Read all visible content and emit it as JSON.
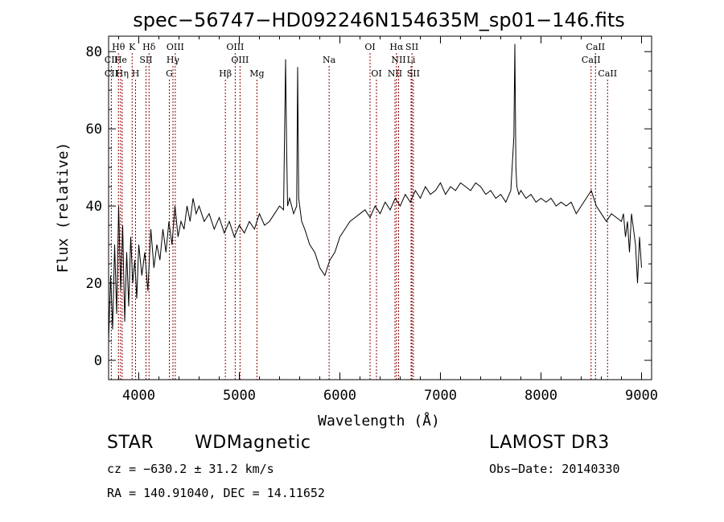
{
  "chart_data": {
    "type": "line",
    "title": "spec−56747−HD092246N154635M_sp01−146.fits",
    "xlabel": "Wavelength (Å)",
    "ylabel": "Flux (relative)",
    "xlim": [
      3700,
      9100
    ],
    "ylim": [
      -5,
      84
    ],
    "xticks": [
      4000,
      5000,
      6000,
      7000,
      8000,
      9000
    ],
    "yticks": [
      0,
      20,
      40,
      60,
      80
    ],
    "line_color": "#8b0000",
    "series": [
      {
        "values_x": [
          3700,
          3720,
          3740,
          3760,
          3780,
          3800,
          3820,
          3840,
          3860,
          3880,
          3900,
          3920,
          3940,
          3960,
          3980,
          4000,
          4030,
          4060,
          4090,
          4120,
          4150,
          4180,
          4210,
          4240,
          4270,
          4300,
          4330,
          4360,
          4390,
          4420,
          4450,
          4480,
          4510,
          4540,
          4570,
          4600,
          4650,
          4700,
          4750,
          4800,
          4850,
          4900,
          4950,
          5000,
          5050,
          5100,
          5150,
          5200,
          5250,
          5300,
          5350,
          5400,
          5440,
          5460,
          5470,
          5480,
          5500,
          5540,
          5570,
          5580,
          5590,
          5620,
          5650,
          5700,
          5750,
          5800,
          5850,
          5900,
          5950,
          6000,
          6050,
          6100,
          6150,
          6200,
          6250,
          6300,
          6350,
          6400,
          6450,
          6500,
          6550,
          6600,
          6650,
          6700,
          6750,
          6800,
          6850,
          6900,
          6950,
          7000,
          7050,
          7100,
          7150,
          7200,
          7250,
          7300,
          7350,
          7400,
          7450,
          7500,
          7550,
          7600,
          7650,
          7700,
          7730,
          7740,
          7750,
          7760,
          7780,
          7800,
          7850,
          7900,
          7950,
          8000,
          8050,
          8100,
          8150,
          8200,
          8250,
          8300,
          8350,
          8400,
          8450,
          8500,
          8550,
          8600,
          8650,
          8700,
          8750,
          8800,
          8820,
          8840,
          8860,
          8880,
          8900,
          8920,
          8940,
          8960,
          8980,
          9000
        ],
        "values_y": [
          5,
          22,
          8,
          30,
          12,
          40,
          18,
          35,
          10,
          28,
          14,
          32,
          20,
          26,
          16,
          30,
          22,
          28,
          18,
          34,
          24,
          30,
          26,
          34,
          28,
          36,
          30,
          40,
          32,
          36,
          34,
          40,
          36,
          42,
          38,
          40,
          36,
          38,
          34,
          37,
          33,
          36,
          32,
          35,
          33,
          36,
          34,
          38,
          35,
          36,
          38,
          40,
          39,
          78,
          55,
          40,
          42,
          38,
          40,
          76,
          42,
          36,
          34,
          30,
          28,
          24,
          22,
          26,
          28,
          32,
          34,
          36,
          37,
          38,
          39,
          37,
          40,
          38,
          41,
          39,
          42,
          40,
          43,
          41,
          44,
          42,
          45,
          43,
          44,
          46,
          43,
          45,
          44,
          46,
          45,
          44,
          46,
          45,
          43,
          44,
          42,
          43,
          41,
          44,
          58,
          82,
          50,
          45,
          43,
          44,
          42,
          43,
          41,
          42,
          41,
          42,
          40,
          41,
          40,
          41,
          38,
          40,
          42,
          44,
          40,
          38,
          36,
          38,
          37,
          36,
          38,
          32,
          36,
          28,
          38,
          34,
          30,
          20,
          32,
          24
        ]
      }
    ],
    "line_labels": [
      {
        "text": "Hθ",
        "row": 1,
        "x": 3798
      },
      {
        "text": "K",
        "row": 1,
        "x": 3934
      },
      {
        "text": "Hδ",
        "row": 1,
        "x": 4102
      },
      {
        "text": "OIII",
        "row": 1,
        "x": 4363
      },
      {
        "text": "OIII",
        "row": 1,
        "x": 4959
      },
      {
        "text": "OI",
        "row": 1,
        "x": 6300
      },
      {
        "text": "Hα",
        "row": 1,
        "x": 6563
      },
      {
        "text": "SII",
        "row": 1,
        "x": 6717
      },
      {
        "text": "CaII",
        "row": 1,
        "x": 8542
      },
      {
        "text": "CII",
        "row": 2,
        "x": 3727
      },
      {
        "text": "He",
        "row": 2,
        "x": 3819
      },
      {
        "text": "SII",
        "row": 2,
        "x": 4072
      },
      {
        "text": "Hγ",
        "row": 2,
        "x": 4340
      },
      {
        "text": "OIII",
        "row": 2,
        "x": 5007
      },
      {
        "text": "Na",
        "row": 2,
        "x": 5893
      },
      {
        "text": "NII",
        "row": 2,
        "x": 6584
      },
      {
        "text": "Li",
        "row": 2,
        "x": 6708
      },
      {
        "text": "CaII",
        "row": 2,
        "x": 8498
      },
      {
        "text": "CII",
        "row": 3,
        "x": 3727
      },
      {
        "text": "Hη",
        "row": 3,
        "x": 3835
      },
      {
        "text": "H",
        "row": 3,
        "x": 3968
      },
      {
        "text": "G",
        "row": 3,
        "x": 4304
      },
      {
        "text": "Hβ",
        "row": 3,
        "x": 4861
      },
      {
        "text": "Mg",
        "row": 3,
        "x": 5175
      },
      {
        "text": "OI",
        "row": 3,
        "x": 6364
      },
      {
        "text": "NII",
        "row": 3,
        "x": 6548
      },
      {
        "text": "SII",
        "row": 3,
        "x": 6731
      },
      {
        "text": "CaII",
        "row": 3,
        "x": 8662
      }
    ]
  },
  "info": {
    "obj_class": "STAR",
    "subclass": "WDMagnetic",
    "survey": "LAMOST DR3",
    "cz": "cz = −630.2 ± 31.2 km/s",
    "obs_date": "Obs−Date: 20140330",
    "radec": "RA = 140.91040, DEC =  14.11652"
  }
}
